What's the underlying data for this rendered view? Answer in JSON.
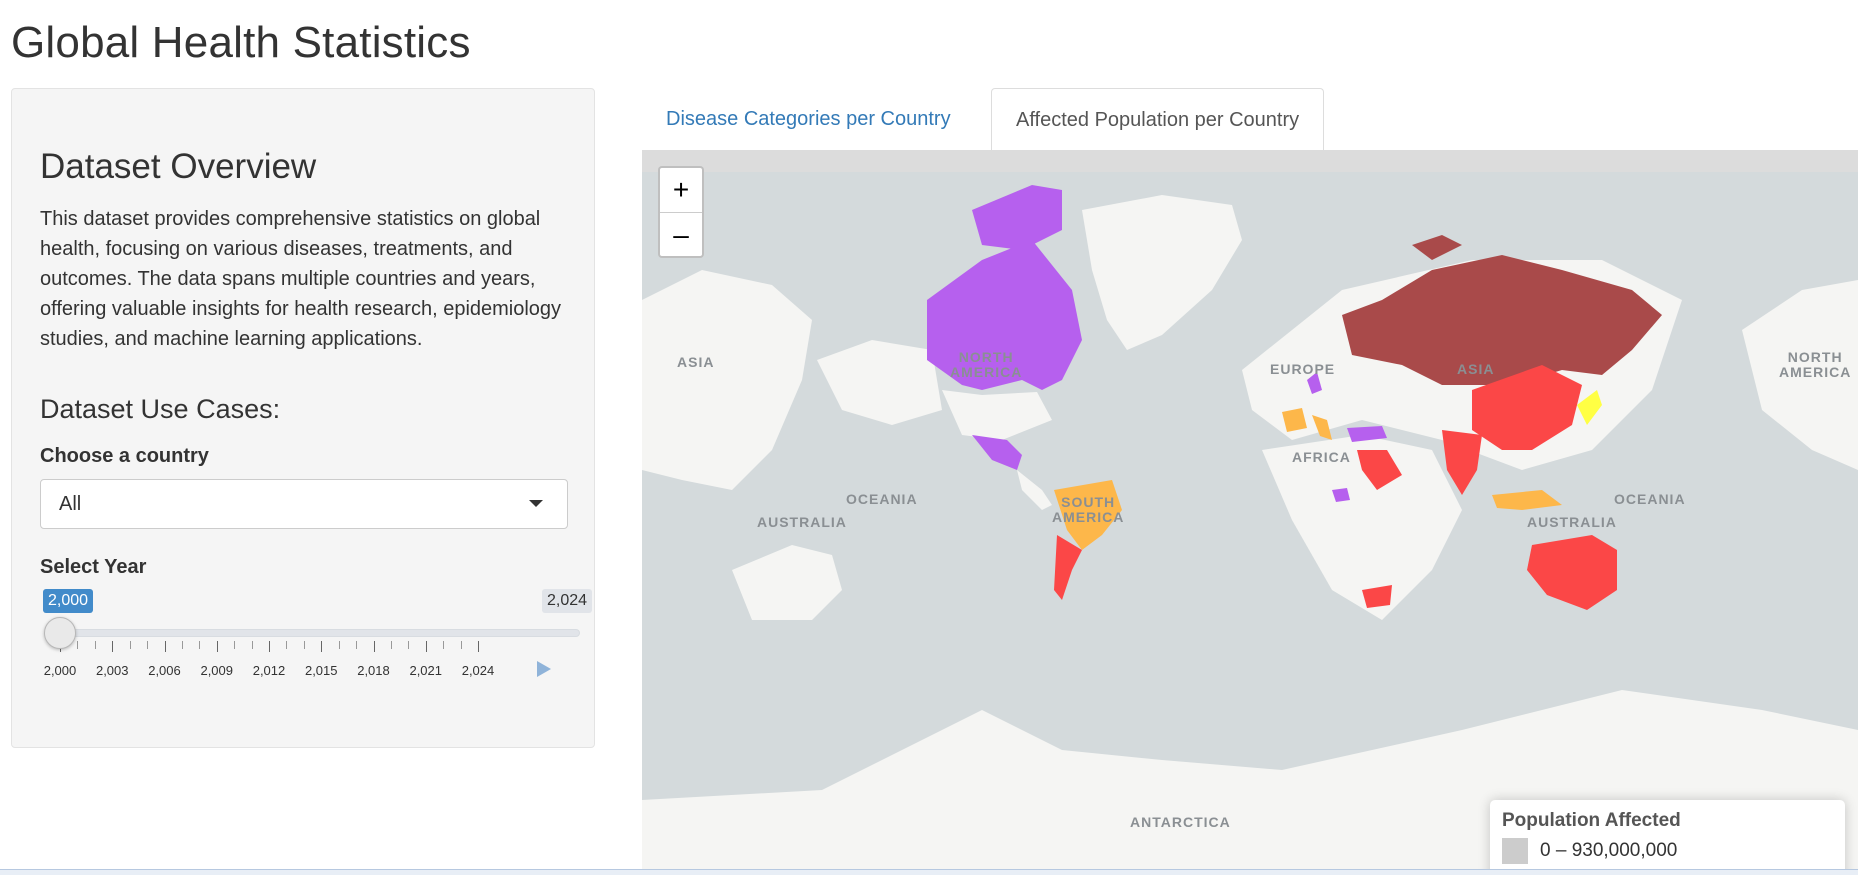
{
  "page": {
    "title": "Global Health Statistics"
  },
  "sidebar": {
    "overview_heading": "Dataset Overview",
    "overview_text": "This dataset provides comprehensive statistics on global health, focusing on various diseases, treatments, and outcomes. The data spans multiple countries and years, offering valuable insights for health research, epidemiology studies, and machine learning applications.",
    "usecases_heading": "Dataset Use Cases:",
    "country_label": "Choose a country",
    "country_value": "All",
    "year_label": "Select Year",
    "slider": {
      "min_label": "2,000",
      "max_label": "2,024",
      "min": 2000,
      "max": 2024,
      "value": 2000,
      "ticks": [
        "2,000",
        "2,003",
        "2,006",
        "2,009",
        "2,012",
        "2,015",
        "2,018",
        "2,021",
        "2,024"
      ]
    }
  },
  "tabs": [
    {
      "label": "Disease Categories per Country",
      "active": false
    },
    {
      "label": "Affected Population per Country",
      "active": true
    }
  ],
  "map": {
    "zoom_in": "+",
    "zoom_out": "–",
    "labels": {
      "asia_west": "ASIA",
      "north_america": "NORTH\nAMERICA",
      "europe": "EUROPE",
      "asia": "ASIA",
      "africa": "AFRICA",
      "oceania_left": "OCEANIA",
      "australia_left": "AUSTRALIA",
      "south_america": "SOUTH\nAMERICA",
      "australia": "AUSTRALIA",
      "oceania_right": "OCEANIA",
      "north_america_east": "NORTH\nAMERICA",
      "antarctica": "ANTARCTICA"
    },
    "colors": {
      "purple": "#b660ee",
      "brown": "#a94a4a",
      "red": "#fb4747",
      "orange": "#fdb74a",
      "yellow": "#ffff44",
      "land": "#f5f5f3",
      "water": "#d4dadc"
    }
  },
  "legend": {
    "title": "Population Affected",
    "range_label": "0 – 930,000,000",
    "swatch_color": "#cccccc"
  }
}
